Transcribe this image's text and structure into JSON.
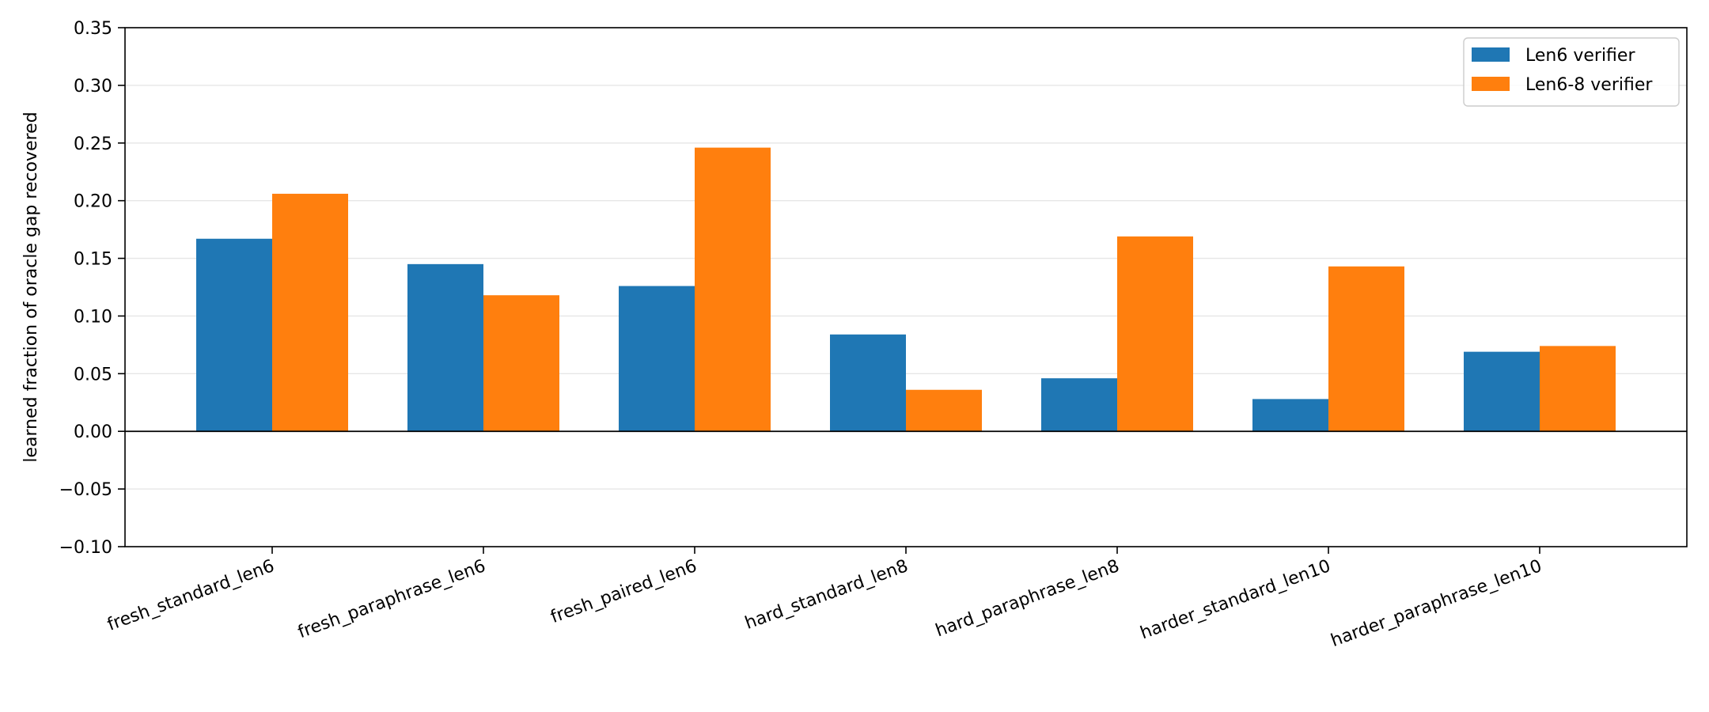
{
  "chart_data": {
    "type": "bar",
    "title": "",
    "xlabel": "",
    "ylabel": "learned fraction of oracle gap recovered",
    "ylim": [
      -0.1,
      0.35
    ],
    "yticks": [
      -0.1,
      -0.05,
      0.0,
      0.05,
      0.1,
      0.15,
      0.2,
      0.25,
      0.3,
      0.35
    ],
    "ytick_labels": [
      "−0.10",
      "−0.05",
      "0.00",
      "0.05",
      "0.10",
      "0.15",
      "0.20",
      "0.25",
      "0.30",
      "0.35"
    ],
    "grid": "horizontal",
    "legend_position": "top-right",
    "categories": [
      "fresh_standard_len6",
      "fresh_paraphrase_len6",
      "fresh_paired_len6",
      "hard_standard_len8",
      "hard_paraphrase_len8",
      "harder_standard_len10",
      "harder_paraphrase_len10"
    ],
    "series": [
      {
        "name": "Len6 verifier",
        "color": "#1f77b4",
        "values": [
          0.167,
          0.145,
          0.126,
          0.084,
          0.046,
          0.028,
          0.069
        ]
      },
      {
        "name": "Len6-8 verifier",
        "color": "#ff7f0e",
        "values": [
          0.206,
          0.118,
          0.246,
          0.036,
          0.169,
          0.143,
          0.074
        ]
      }
    ]
  }
}
